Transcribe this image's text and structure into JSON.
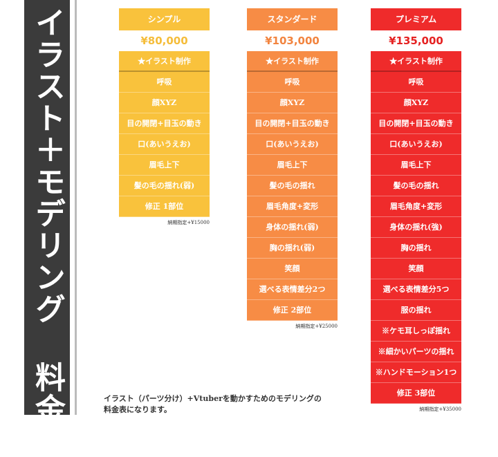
{
  "title": "イラスト＋モデリング 料金表",
  "plans": [
    {
      "name": "シンプル",
      "price": "¥80,000",
      "color": "#f9c23c",
      "price_color": "#f5bd3a",
      "features": [
        "★イラスト制作",
        "呼吸",
        "顔XYZ",
        "目の開閉+目玉の動き",
        "口(あいうえお)",
        "眉毛上下",
        "髪の毛の揺れ(弱)",
        "修正 1部位"
      ],
      "note": "納期指定+¥15000"
    },
    {
      "name": "スタンダード",
      "price": "¥103,000",
      "color": "#f78c45",
      "price_color": "#f2843f",
      "features": [
        "★イラスト制作",
        "呼吸",
        "顔XYZ",
        "目の開閉+目玉の動き",
        "口(あいうえお)",
        "眉毛上下",
        "髪の毛の揺れ",
        "眉毛角度+変形",
        "身体の揺れ(弱)",
        "胸の揺れ(弱)",
        "笑顔",
        "選べる表情差分2つ",
        "修正 2部位"
      ],
      "note": "納期指定+¥25000"
    },
    {
      "name": "プレミアム",
      "price": "¥135,000",
      "color": "#ef2b2b",
      "price_color": "#e52222",
      "features": [
        "★イラスト制作",
        "呼吸",
        "顔XYZ",
        "目の開閉+目玉の動き",
        "口(あいうえお)",
        "眉毛上下",
        "髪の毛の揺れ",
        "眉毛角度+変形",
        "身体の揺れ(強)",
        "胸の揺れ",
        "笑顔",
        "選べる表情差分5つ",
        "服の揺れ",
        "※ケモ耳しっぽ揺れ",
        "※細かいパーツの揺れ",
        "※ハンドモーション1つ",
        "修正 3部位"
      ],
      "note": "納期指定+¥35000"
    }
  ],
  "description": [
    "イラスト（パーツ分け）+Vtuberを動かすためのモデリングの",
    "料金表になります。"
  ]
}
